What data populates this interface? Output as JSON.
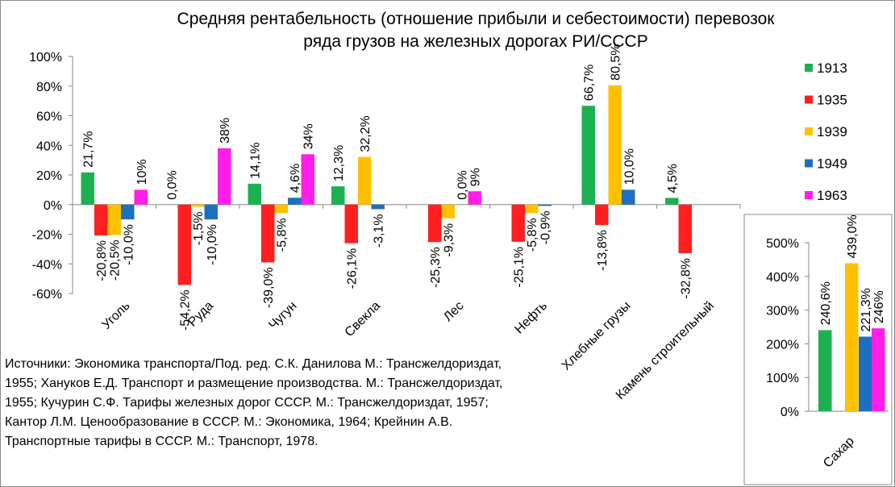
{
  "chart_data": [
    {
      "type": "bar",
      "title_line1": "Средняя рентабельность (отношение прибыли и себестоимости) перевозок",
      "title_line2": "ряда грузов на железных дорогах РИ/СССР",
      "categories": [
        "Уголь",
        "Руда",
        "Чугун",
        "Свекла",
        "Лес",
        "Нефть",
        "Хлебные грузы",
        "Камень строительный"
      ],
      "ylim": [
        -60,
        100
      ],
      "yticks": [
        -60,
        -40,
        -20,
        0,
        20,
        40,
        60,
        80,
        100
      ],
      "ytick_labels": [
        "-60%",
        "-40%",
        "-20%",
        "0%",
        "20%",
        "40%",
        "60%",
        "80%",
        "100%"
      ],
      "grid": false,
      "legend_placement": "right",
      "series": [
        {
          "name": "1913",
          "color": "#1DB050",
          "values": [
            21.7,
            0.0,
            14.1,
            12.3,
            null,
            null,
            66.7,
            4.5
          ],
          "labels": [
            "21,7%",
            "0,0%",
            "14,1%",
            "12,3%",
            "",
            "",
            "66,7%",
            "4,5%"
          ]
        },
        {
          "name": "1935",
          "color": "#FF1F1F",
          "values": [
            -20.8,
            -54.2,
            -39.0,
            -26.1,
            -25.3,
            -25.1,
            -13.8,
            -32.8
          ],
          "labels": [
            "-20,8%",
            "-54,2%",
            "-39,0%",
            "-26,1%",
            "-25,3%",
            "-25,1%",
            "-13,8%",
            "-32,8%"
          ]
        },
        {
          "name": "1939",
          "color": "#FFC000",
          "values": [
            -20.5,
            -1.5,
            -5.8,
            32.2,
            -9.3,
            -5.8,
            80.5,
            null
          ],
          "labels": [
            "-20,5%",
            "-1,5%",
            "-5,8%",
            "32,2%",
            "-9,3%",
            "-5,8%",
            "80,5%",
            ""
          ]
        },
        {
          "name": "1949",
          "color": "#1F6FC0",
          "values": [
            -10.0,
            -10.0,
            4.6,
            -3.1,
            0.0,
            -0.9,
            10.0,
            null
          ],
          "labels": [
            "-10,0%",
            "-10,0%",
            "4,6%",
            "-3,1%",
            "0,0%",
            "-0,9%",
            "10,0%",
            ""
          ]
        },
        {
          "name": "1963",
          "color": "#FF1FE8",
          "values": [
            10,
            38,
            34,
            null,
            9,
            null,
            null,
            null
          ],
          "labels": [
            "10%",
            "38%",
            "34%",
            "",
            "9%",
            "",
            "",
            ""
          ]
        }
      ]
    },
    {
      "type": "bar",
      "categories": [
        "Сахар"
      ],
      "ylim": [
        0,
        500
      ],
      "yticks": [
        0,
        100,
        200,
        300,
        400,
        500
      ],
      "ytick_labels": [
        "0%",
        "100%",
        "200%",
        "300%",
        "400%",
        "500%"
      ],
      "series": [
        {
          "name": "1913",
          "color": "#1DB050",
          "values": [
            240.6
          ],
          "labels": [
            "240,6%"
          ]
        },
        {
          "name": "1939",
          "color": "#FFC000",
          "values": [
            439.0
          ],
          "labels": [
            "439,0%"
          ]
        },
        {
          "name": "1949",
          "color": "#1F6FC0",
          "values": [
            221.3
          ],
          "labels": [
            "221,3%"
          ]
        },
        {
          "name": "1963",
          "color": "#FF1FE8",
          "values": [
            246
          ],
          "labels": [
            "246%"
          ]
        }
      ]
    }
  ],
  "sources": "Источники: Экономика транспорта/Под. ред. С.К. Данилова  М.: Трансжелдориздат, 1955; Хануков Е.Д. Транспорт и размещение производства. М.: Трансжелдориздат, 1955; Кучурин С.Ф. Тарифы железных дорог СССР. М.: Трансжелдориздат, 1957; Кантор Л.М. Ценообразование в СССР. М.: Экономика, 1964; Крейнин А.В. Транспортные тарифы в СССР. М.: Транспорт, 1978."
}
